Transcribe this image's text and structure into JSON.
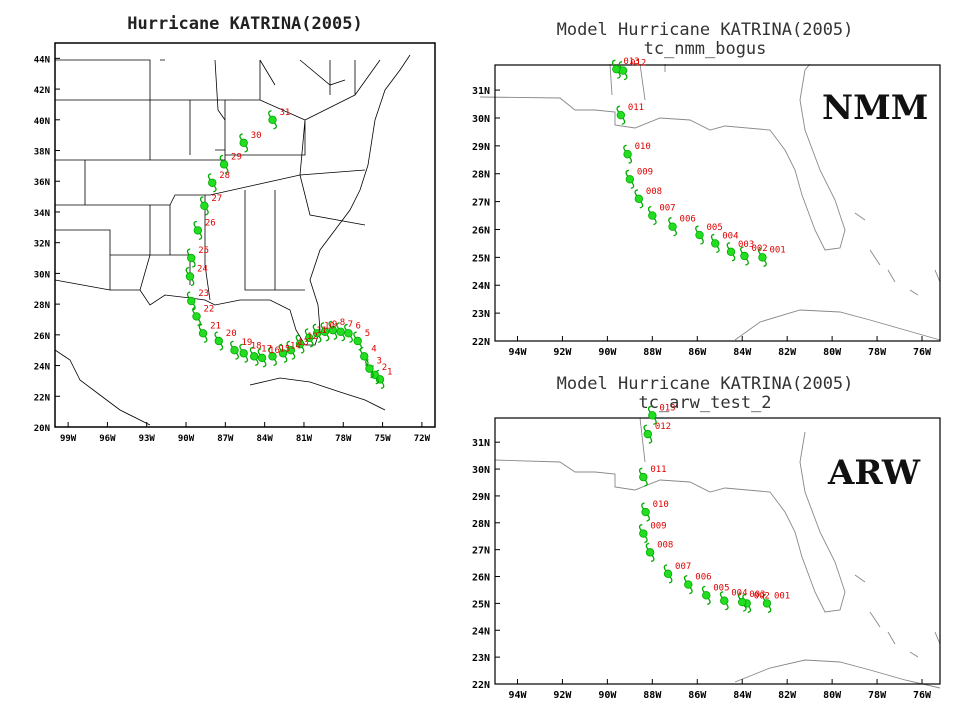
{
  "panel_left": {
    "title": "Hurricane KATRINA(2005)",
    "lon_labels": [
      "99W",
      "96W",
      "93W",
      "90W",
      "87W",
      "84W",
      "81W",
      "78W",
      "75W",
      "72W"
    ],
    "lat_labels": [
      "20N",
      "22N",
      "24N",
      "26N",
      "28N",
      "30N",
      "32N",
      "34N",
      "36N",
      "38N",
      "40N",
      "42N",
      "44N"
    ],
    "track": [
      {
        "label": "1",
        "lon": -75.2,
        "lat": 23.1
      },
      {
        "label": "2",
        "lon": -75.6,
        "lat": 23.4
      },
      {
        "label": "3",
        "lon": -76.0,
        "lat": 23.8
      },
      {
        "label": "4",
        "lon": -76.4,
        "lat": 24.6
      },
      {
        "label": "5",
        "lon": -76.9,
        "lat": 25.6
      },
      {
        "label": "6",
        "lon": -77.6,
        "lat": 26.1
      },
      {
        "label": "7",
        "lon": -78.2,
        "lat": 26.2
      },
      {
        "label": "8",
        "lon": -78.8,
        "lat": 26.3
      },
      {
        "label": "9",
        "lon": -79.4,
        "lat": 26.2
      },
      {
        "label": "10",
        "lon": -80.0,
        "lat": 26.1
      },
      {
        "label": "11",
        "lon": -80.6,
        "lat": 25.8
      },
      {
        "label": "12",
        "lon": -81.3,
        "lat": 25.4
      },
      {
        "label": "13",
        "lon": -82.0,
        "lat": 25.0
      },
      {
        "label": "14",
        "lon": -82.6,
        "lat": 24.8
      },
      {
        "label": "15",
        "lon": -83.4,
        "lat": 24.6
      },
      {
        "label": "16",
        "lon": -84.2,
        "lat": 24.5
      },
      {
        "label": "17",
        "lon": -84.8,
        "lat": 24.6
      },
      {
        "label": "18",
        "lon": -85.6,
        "lat": 24.8
      },
      {
        "label": "19",
        "lon": -86.3,
        "lat": 25.0
      },
      {
        "label": "20",
        "lon": -87.5,
        "lat": 25.6
      },
      {
        "label": "21",
        "lon": -88.7,
        "lat": 26.1
      },
      {
        "label": "22",
        "lon": -89.2,
        "lat": 27.2
      },
      {
        "label": "23",
        "lon": -89.6,
        "lat": 28.2
      },
      {
        "label": "24",
        "lon": -89.7,
        "lat": 29.8
      },
      {
        "label": "25",
        "lon": -89.6,
        "lat": 31.0
      },
      {
        "label": "26",
        "lon": -89.1,
        "lat": 32.8
      },
      {
        "label": "27",
        "lon": -88.6,
        "lat": 34.4
      },
      {
        "label": "28",
        "lon": -88.0,
        "lat": 35.9
      },
      {
        "label": "29",
        "lon": -87.1,
        "lat": 37.1
      },
      {
        "label": "30",
        "lon": -85.6,
        "lat": 38.5
      },
      {
        "label": "31",
        "lon": -83.4,
        "lat": 40.0
      }
    ]
  },
  "panel_nmm": {
    "title1": "Model Hurricane KATRINA(2005)",
    "title2": "tc_nmm_bogus",
    "model_label": "NMM",
    "lon_labels": [
      "94W",
      "92W",
      "90W",
      "88W",
      "86W",
      "84W",
      "82W",
      "80W",
      "78W",
      "76W"
    ],
    "lat_labels": [
      "22N",
      "23N",
      "24N",
      "25N",
      "26N",
      "27N",
      "28N",
      "29N",
      "30N",
      "31N"
    ],
    "track": [
      {
        "label": "001",
        "lon": -83.1,
        "lat": 25.0
      },
      {
        "label": "002",
        "lon": -83.9,
        "lat": 25.05
      },
      {
        "label": "003",
        "lon": -84.5,
        "lat": 25.2
      },
      {
        "label": "004",
        "lon": -85.2,
        "lat": 25.5
      },
      {
        "label": "005",
        "lon": -85.9,
        "lat": 25.8
      },
      {
        "label": "006",
        "lon": -87.1,
        "lat": 26.1
      },
      {
        "label": "007",
        "lon": -88.0,
        "lat": 26.5
      },
      {
        "label": "008",
        "lon": -88.6,
        "lat": 27.1
      },
      {
        "label": "009",
        "lon": -89.0,
        "lat": 27.8
      },
      {
        "label": "010",
        "lon": -89.1,
        "lat": 28.7
      },
      {
        "label": "011",
        "lon": -89.4,
        "lat": 30.1
      },
      {
        "label": "012",
        "lon": -89.3,
        "lat": 31.7
      },
      {
        "label": "013",
        "lon": -89.6,
        "lat": 31.75
      }
    ]
  },
  "panel_arw": {
    "title1": "Model Hurricane KATRINA(2005)",
    "title2": "tc_arw_test_2",
    "model_label": "ARW",
    "lon_labels": [
      "94W",
      "92W",
      "90W",
      "88W",
      "86W",
      "84W",
      "82W",
      "80W",
      "78W",
      "76W"
    ],
    "lat_labels": [
      "22N",
      "23N",
      "24N",
      "25N",
      "26N",
      "27N",
      "28N",
      "29N",
      "30N",
      "31N"
    ],
    "track": [
      {
        "label": "001",
        "lon": -82.9,
        "lat": 25.0
      },
      {
        "label": "002",
        "lon": -83.8,
        "lat": 25.0
      },
      {
        "label": "003",
        "lon": -84.0,
        "lat": 25.05
      },
      {
        "label": "004",
        "lon": -84.8,
        "lat": 25.1
      },
      {
        "label": "005",
        "lon": -85.6,
        "lat": 25.3
      },
      {
        "label": "006",
        "lon": -86.4,
        "lat": 25.7
      },
      {
        "label": "007",
        "lon": -87.3,
        "lat": 26.1
      },
      {
        "label": "008",
        "lon": -88.1,
        "lat": 26.9
      },
      {
        "label": "009",
        "lon": -88.4,
        "lat": 27.6
      },
      {
        "label": "010",
        "lon": -88.3,
        "lat": 28.4
      },
      {
        "label": "011",
        "lon": -88.4,
        "lat": 29.7
      },
      {
        "label": "012",
        "lon": -88.2,
        "lat": 31.3
      },
      {
        "label": "013",
        "lon": -88.0,
        "lat": 32.0
      }
    ]
  }
}
